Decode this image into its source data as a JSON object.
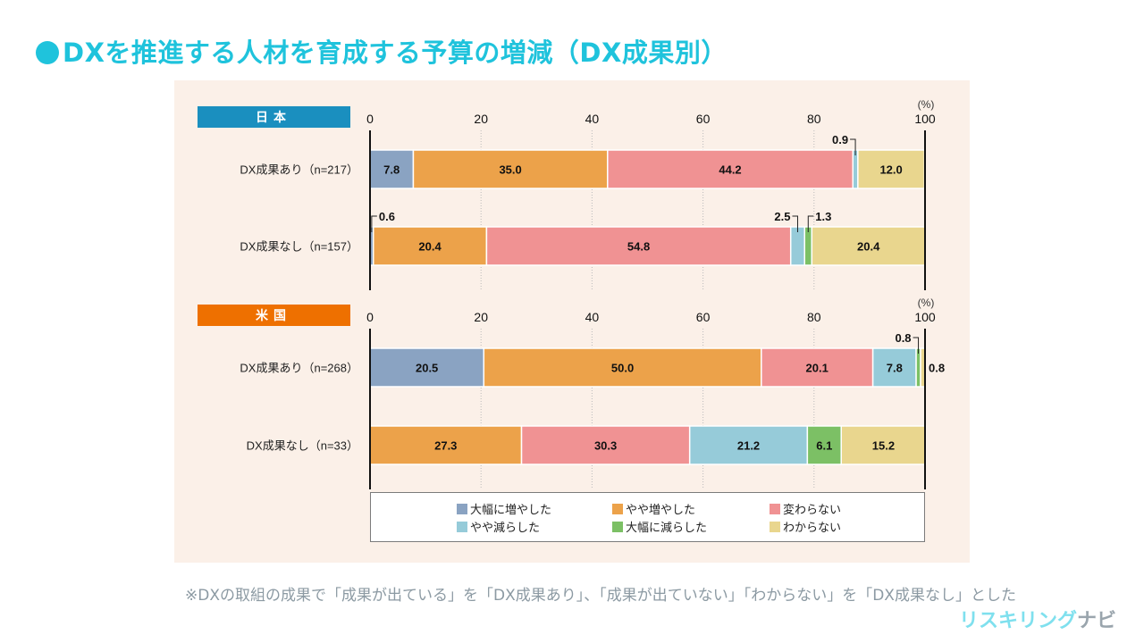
{
  "title": "DXを推進する人材を育成する予算の増減（DX成果別）",
  "footnote": "※DXの取組の成果で「成果が出ている」を「DX成果あり」、「成果が出ていない」「わからない」を「DX成果なし」とした",
  "logo": {
    "part1": "リスキリング",
    "part2": "ナビ"
  },
  "colors": {
    "title": "#1fc3dc",
    "japan_header": "#1a8fbf",
    "us_header": "#ee7000",
    "panel_bg": "#fbf0e8"
  },
  "chart_data": [
    {
      "type": "bar",
      "orientation": "horizontal-stacked-100",
      "group": "日本",
      "unit": "(%)",
      "xlim": [
        0,
        100
      ],
      "ticks": [
        "0",
        "20",
        "40",
        "60",
        "80",
        "100"
      ],
      "categories": [
        "DX成果あり（n=217）",
        "DX成果なし（n=157）"
      ],
      "series": [
        {
          "name": "大幅に増やした",
          "color": "#8aa3c2",
          "values": [
            7.8,
            0.6
          ]
        },
        {
          "name": "やや増やした",
          "color": "#eca24a",
          "values": [
            35.0,
            20.4
          ]
        },
        {
          "name": "変わらない",
          "color": "#f09293",
          "values": [
            44.2,
            54.8
          ]
        },
        {
          "name": "やや減らした",
          "color": "#96cbd9",
          "values": [
            0.9,
            2.5
          ]
        },
        {
          "name": "大幅に減らした",
          "color": "#7cc065",
          "values": [
            0,
            1.3
          ]
        },
        {
          "name": "わからない",
          "color": "#e9d68e",
          "values": [
            12.0,
            20.4
          ]
        }
      ],
      "labels": [
        [
          "7.8",
          "35.0",
          "44.2",
          "0.9",
          "",
          "12.0"
        ],
        [
          "0.6",
          "20.4",
          "54.8",
          "2.5",
          "1.3",
          "20.4"
        ]
      ]
    },
    {
      "type": "bar",
      "orientation": "horizontal-stacked-100",
      "group": "米国",
      "unit": "(%)",
      "xlim": [
        0,
        100
      ],
      "ticks": [
        "0",
        "20",
        "40",
        "60",
        "80",
        "100"
      ],
      "categories": [
        "DX成果あり（n=268）",
        "DX成果なし（n=33）"
      ],
      "series": [
        {
          "name": "大幅に増やした",
          "color": "#8aa3c2",
          "values": [
            20.5,
            0
          ]
        },
        {
          "name": "やや増やした",
          "color": "#eca24a",
          "values": [
            50.0,
            27.3
          ]
        },
        {
          "name": "変わらない",
          "color": "#f09293",
          "values": [
            20.1,
            30.3
          ]
        },
        {
          "name": "やや減らした",
          "color": "#96cbd9",
          "values": [
            7.8,
            21.2
          ]
        },
        {
          "name": "大幅に減らした",
          "color": "#7cc065",
          "values": [
            0.8,
            6.1
          ]
        },
        {
          "name": "わからない",
          "color": "#e9d68e",
          "values": [
            0.8,
            15.2
          ]
        }
      ],
      "labels": [
        [
          "20.5",
          "50.0",
          "20.1",
          "7.8",
          "0.8",
          "0.8"
        ],
        [
          "",
          "27.3",
          "30.3",
          "21.2",
          "6.1",
          "15.2"
        ]
      ]
    }
  ],
  "legend": [
    {
      "label": "大幅に増やした",
      "color": "#8aa3c2"
    },
    {
      "label": "やや増やした",
      "color": "#eca24a"
    },
    {
      "label": "変わらない",
      "color": "#f09293"
    },
    {
      "label": "やや減らした",
      "color": "#96cbd9"
    },
    {
      "label": "大幅に減らした",
      "color": "#7cc065"
    },
    {
      "label": "わからない",
      "color": "#e9d68e"
    }
  ]
}
